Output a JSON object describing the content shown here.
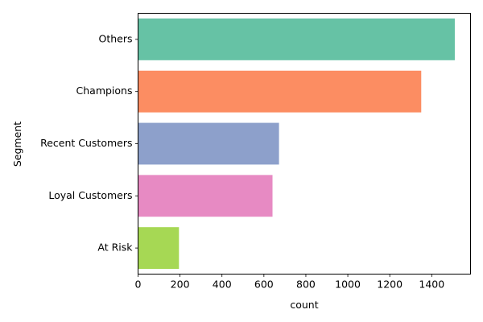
{
  "chart_data": {
    "type": "bar",
    "orientation": "horizontal",
    "categories": [
      "Others",
      "Champions",
      "Recent Customers",
      "Loyal Customers",
      "At Risk"
    ],
    "values": [
      1510,
      1350,
      672,
      641,
      195
    ],
    "colors": [
      "#66c2a5",
      "#fc8d62",
      "#8da0cb",
      "#e78ac3",
      "#a6d854"
    ],
    "xlabel": "count",
    "ylabel": "Segment",
    "xticks": [
      0,
      200,
      400,
      600,
      800,
      1000,
      1200,
      1400
    ],
    "xlim": [
      0,
      1585
    ],
    "grid": false,
    "legend": "none"
  }
}
